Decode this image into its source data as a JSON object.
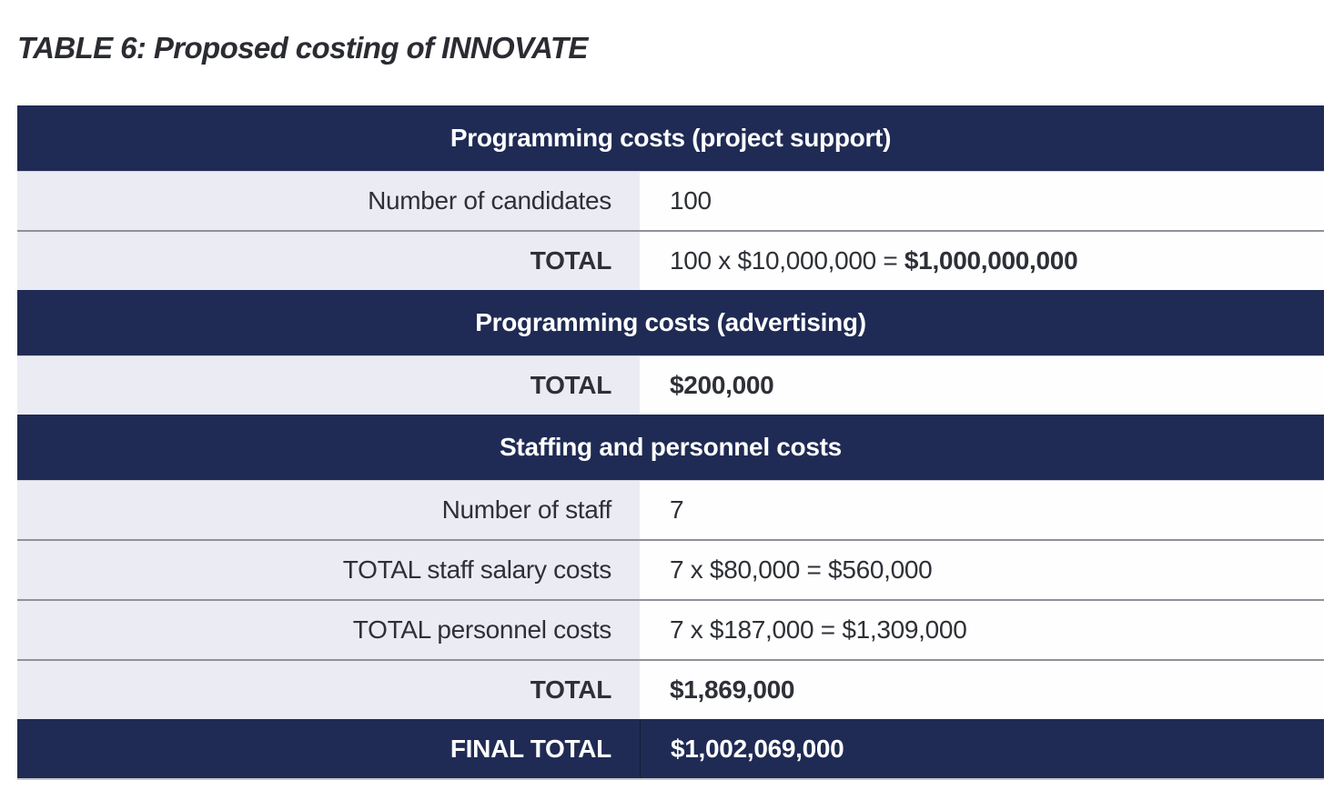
{
  "title": "TABLE 6: Proposed costing of INNOVATE",
  "colors": {
    "header_bg": "#1f2b54",
    "header_text": "#ffffff",
    "label_cell_bg": "#ebebf4",
    "value_cell_bg": "#fefefe",
    "row_separator": "#8f9099",
    "body_text": "#2e3037"
  },
  "table": {
    "rows": [
      {
        "type": "section",
        "title": "Programming costs (project support)"
      },
      {
        "type": "row",
        "label": "Number of candidates",
        "value": "100",
        "value_bold": ""
      },
      {
        "type": "row",
        "label": "TOTAL",
        "value": "100 x $10,000,000 = ",
        "value_bold": "$1,000,000,000"
      },
      {
        "type": "section",
        "title": "Programming costs (advertising)"
      },
      {
        "type": "row",
        "label": "TOTAL",
        "value": "",
        "value_bold": "$200,000"
      },
      {
        "type": "section",
        "title": "Staffing and personnel costs"
      },
      {
        "type": "row",
        "label": "Number of staff",
        "value": "7",
        "value_bold": ""
      },
      {
        "type": "row",
        "label": "TOTAL staff salary costs",
        "value": "7 x $80,000 = $560,000",
        "value_bold": ""
      },
      {
        "type": "row",
        "label": "TOTAL personnel costs",
        "value": "7 x $187,000 = $1,309,000",
        "value_bold": ""
      },
      {
        "type": "row",
        "label": "TOTAL",
        "value": "",
        "value_bold": "$1,869,000"
      },
      {
        "type": "final",
        "label": "FINAL TOTAL",
        "value": "$1,002,069,000"
      }
    ]
  }
}
